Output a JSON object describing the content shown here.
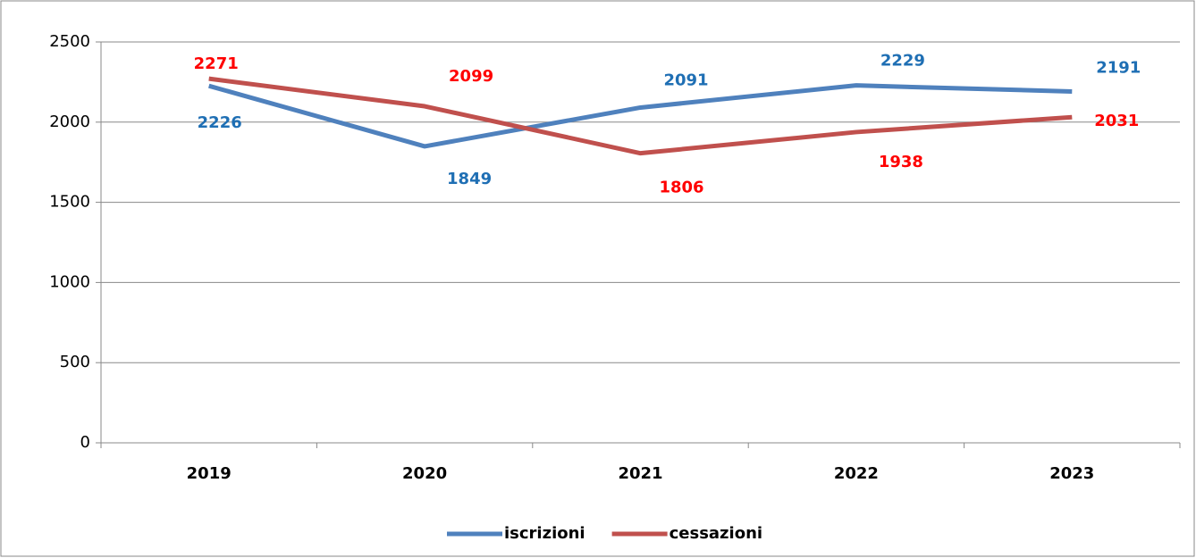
{
  "chart_data": {
    "type": "line",
    "categories": [
      "2019",
      "2020",
      "2021",
      "2022",
      "2023"
    ],
    "series": [
      {
        "name": "iscrizioni",
        "color": "#4f81bd",
        "label_color": "#1f6fb4",
        "values": [
          2226,
          1849,
          2091,
          2229,
          2191
        ]
      },
      {
        "name": "cessazioni",
        "color": "#c0504d",
        "label_color": "#ff0000",
        "values": [
          2271,
          2099,
          1806,
          1938,
          2031
        ]
      }
    ],
    "ylim": [
      0,
      2500
    ],
    "yticks": [
      0,
      500,
      1000,
      1500,
      2000,
      2500
    ],
    "grid": true,
    "legend": "bottom"
  }
}
